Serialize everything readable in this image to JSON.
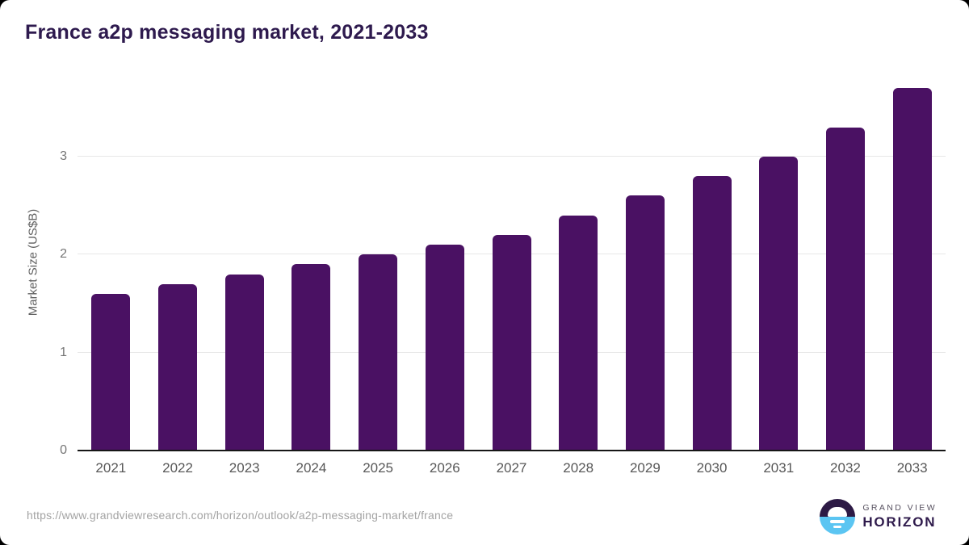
{
  "chart_data": {
    "type": "bar",
    "title": "France a2p messaging market, 2021-2033",
    "categories": [
      "2021",
      "2022",
      "2023",
      "2024",
      "2025",
      "2026",
      "2027",
      "2028",
      "2029",
      "2030",
      "2031",
      "2032",
      "2033"
    ],
    "values": [
      1.6,
      1.7,
      1.8,
      1.9,
      2.0,
      2.1,
      2.2,
      2.4,
      2.6,
      2.8,
      3.0,
      3.3,
      3.7
    ],
    "xlabel": "",
    "ylabel": "Market Size (US$B)",
    "yticks": [
      0,
      1,
      2,
      3
    ],
    "ylim": [
      0,
      3.84
    ],
    "grid": true,
    "legend": false,
    "bar_color": "#4a1163",
    "gridline_color": "#e7e7e7",
    "axis_color": "#161616",
    "ytick_label_color": "#757575",
    "xtick_label_color": "#575757",
    "title_color": "#2e1a4e"
  },
  "footer": {
    "source_url": "https://www.grandviewresearch.com/horizon/outlook/a2p-messaging-market/france",
    "logo": {
      "icon": "horizon-sunrise-icon",
      "brand_line1": "GRAND VIEW",
      "brand_line2": "HORIZON",
      "icon_top_color": "#2d1a45",
      "icon_bottom_color": "#5bc5f2"
    }
  }
}
